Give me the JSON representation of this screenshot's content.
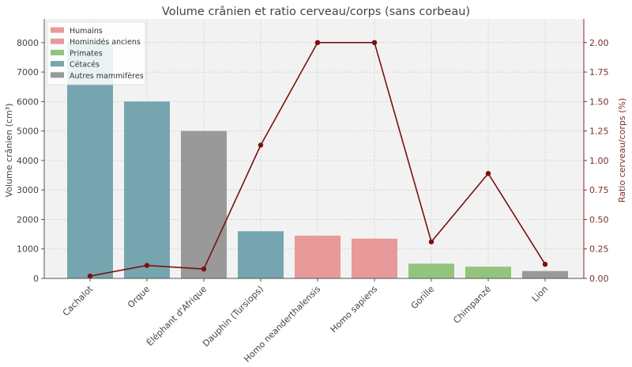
{
  "chart_data": {
    "type": "bar",
    "title": "Volume crânien et ratio cerveau/corps (sans corbeau)",
    "categories": [
      "Cachalot",
      "Orque",
      "Éléphant d'Afrique",
      "Dauphin (Tursiops)",
      "Homo neanderthalensis",
      "Homo sapiens",
      "Gorille",
      "Chimpanzé",
      "Lion"
    ],
    "category_groups": [
      "Cétacés",
      "Cétacés",
      "Autres mammifères",
      "Cétacés",
      "Hominidés anciens",
      "Humains",
      "Primates",
      "Primates",
      "Autres mammifères"
    ],
    "series": [
      {
        "name": "Volume crânien (cm³)",
        "type": "bar",
        "axis": "left",
        "values": [
          8000,
          6000,
          5000,
          1600,
          1450,
          1350,
          500,
          400,
          250
        ]
      },
      {
        "name": "Ratio cerveau/corps (%)",
        "type": "line",
        "axis": "right",
        "values": [
          0.02,
          0.11,
          0.08,
          1.13,
          2.0,
          2.0,
          0.31,
          0.89,
          0.12
        ]
      }
    ],
    "ylabel": "Volume crânien (cm³)",
    "ylabel_right": "Ratio cerveau/corps (%)",
    "ylim": [
      0,
      8800
    ],
    "ylim_right": [
      0,
      2.2
    ],
    "yticks": [
      0,
      1000,
      2000,
      3000,
      4000,
      5000,
      6000,
      7000,
      8000
    ],
    "yticks_right": [
      "0.00",
      "0.25",
      "0.50",
      "0.75",
      "1.00",
      "1.25",
      "1.50",
      "1.75",
      "2.00"
    ],
    "legend": {
      "position": "top-left",
      "entries": [
        {
          "label": "Humains",
          "color": "#e8999a"
        },
        {
          "label": "Hominidés anciens",
          "color": "#e8999a"
        },
        {
          "label": "Primates",
          "color": "#93c47d"
        },
        {
          "label": "Cétacés",
          "color": "#76a5af"
        },
        {
          "label": "Autres mammifères",
          "color": "#999999"
        }
      ]
    },
    "grid": true,
    "colors": {
      "Humains": "#e8999a",
      "Hominidés anciens": "#e8999a",
      "Primates": "#93c47d",
      "Cétacés": "#76a5af",
      "Autres mammifères": "#999999",
      "line": "#7b1010",
      "right_axis": "#7b2e2e",
      "plot_background": "#f2f2f2"
    }
  }
}
